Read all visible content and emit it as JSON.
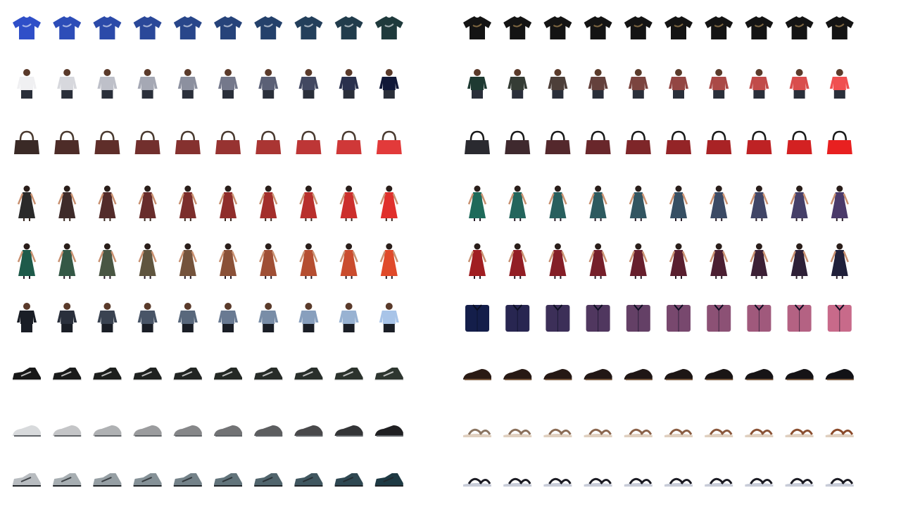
{
  "grids": [
    {
      "rows": [
        {
          "item": "tshirt",
          "from": "#2f4fc8",
          "to": "#1f3a3c",
          "accent": "#ffffff"
        },
        {
          "item": "person",
          "from": "#f0f0f2",
          "to": "#101838",
          "accent": "#2a2f3a"
        },
        {
          "item": "handbag",
          "from": "#3a2a26",
          "to": "#e23a3a",
          "accent": "#4a3a30"
        },
        {
          "item": "dress",
          "from": "#2a2a2a",
          "to": "#e0302c",
          "accent": "#3a2a22"
        },
        {
          "item": "dress",
          "from": "#1e5a4a",
          "to": "#e04a2a",
          "accent": "#2a1e2a"
        },
        {
          "item": "person",
          "from": "#1a1e26",
          "to": "#a8c4e8",
          "accent": "#1a1e26"
        },
        {
          "item": "sneaker",
          "from": "#181818",
          "to": "#2e3630",
          "accent": "#e8e8e8"
        },
        {
          "item": "shoe",
          "from": "#d8dadc",
          "to": "#202022",
          "accent": "#606468"
        },
        {
          "item": "sneaker",
          "from": "#b8bcc0",
          "to": "#1e3a44",
          "accent": "#202428"
        }
      ]
    },
    {
      "rows": [
        {
          "item": "tshirt",
          "from": "#141414",
          "to": "#141414",
          "accent": "#c8a060"
        },
        {
          "item": "person",
          "from": "#1e3a32",
          "to": "#f05050",
          "accent": "#2a2f3a"
        },
        {
          "item": "handbag",
          "from": "#2a2a30",
          "to": "#e82020",
          "accent": "#1a1a1a"
        },
        {
          "item": "dress",
          "from": "#1e6a5a",
          "to": "#4a3a6a",
          "accent": "#2a1e2a"
        },
        {
          "item": "dress",
          "from": "#a01e22",
          "to": "#20203a",
          "accent": "#2a1e2a"
        },
        {
          "item": "shirt",
          "from": "#141e4a",
          "to": "#c86a8a",
          "accent": "#0a0e20"
        },
        {
          "item": "shoe",
          "from": "#2a1a14",
          "to": "#121216",
          "accent": "#7a5a40"
        },
        {
          "item": "sandal",
          "from": "#8a7460",
          "to": "#8a4a2a",
          "accent": "#e0d0c0"
        },
        {
          "item": "sandal",
          "from": "#1a1a22",
          "to": "#1a1a22",
          "accent": "#c8ccd8"
        }
      ]
    }
  ]
}
